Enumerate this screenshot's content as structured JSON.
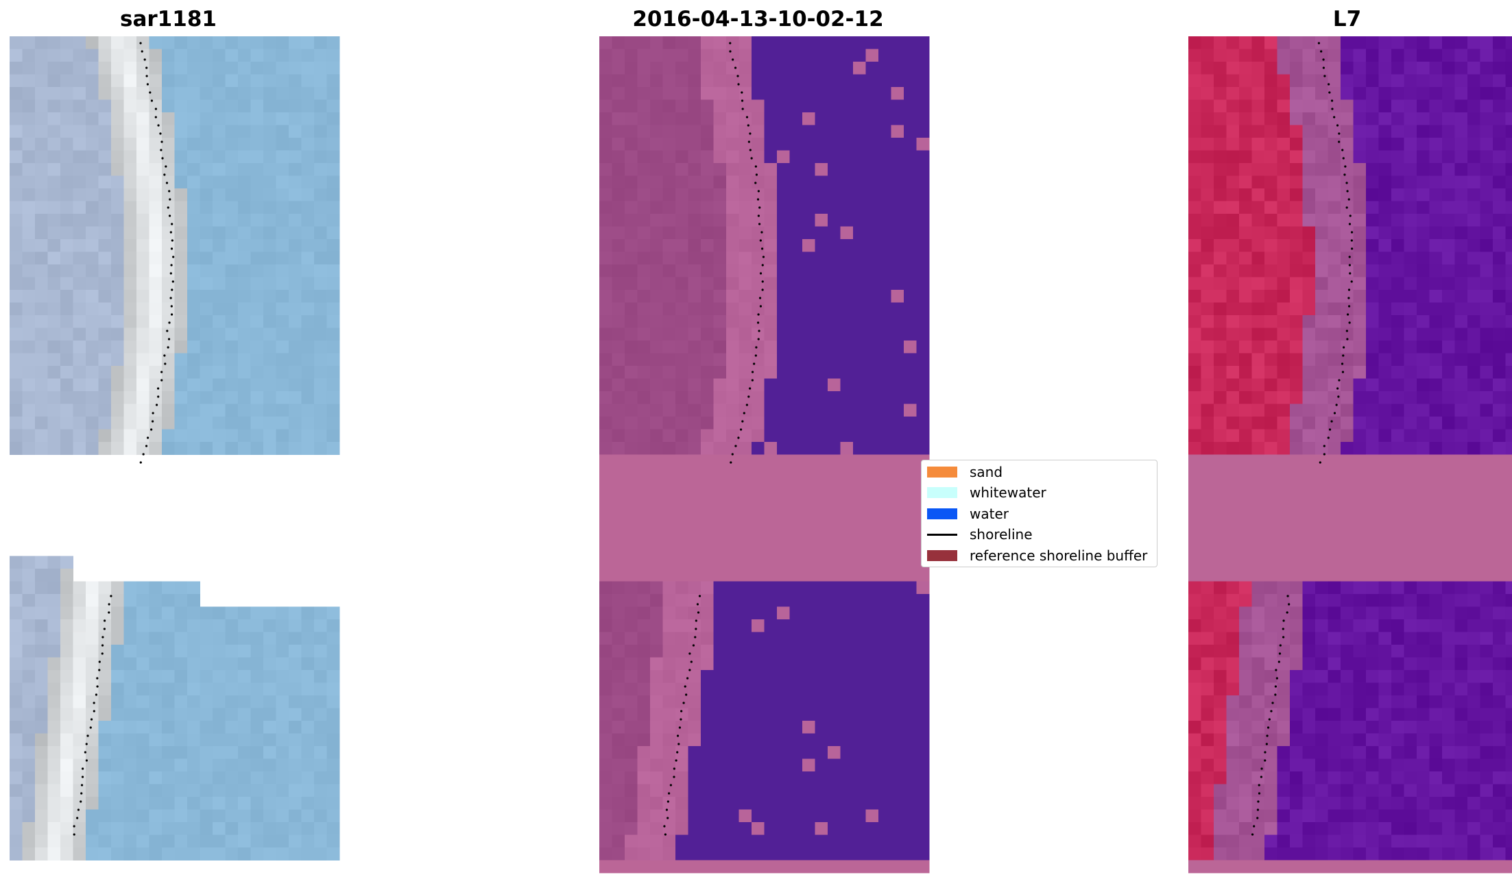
{
  "panels": [
    {
      "title": "sar1181",
      "kind": "rgb"
    },
    {
      "title": "2016-04-13-10-02-12",
      "kind": "classified"
    },
    {
      "title": "L7",
      "kind": "falsecolor"
    }
  ],
  "legend": {
    "items": [
      {
        "label": "sand",
        "color": "#f58b3b",
        "type": "patch"
      },
      {
        "label": "whitewater",
        "color": "#c8fffc",
        "type": "patch"
      },
      {
        "label": "water",
        "color": "#0a57f5",
        "type": "patch"
      },
      {
        "label": "shoreline",
        "color": "#000000",
        "type": "line"
      },
      {
        "label": "reference shoreline buffer",
        "color": "#97313c",
        "type": "patch"
      }
    ]
  },
  "colors": {
    "rgb_land": "#a9b8d2",
    "rgb_beach": "#f2f5f7",
    "rgb_water": "#8ab8d8",
    "class_land": "#9b4a85",
    "class_beach": "#b8649a",
    "class_water": "#522096",
    "class_buffer": "#bb6697",
    "fc_land": "#c9285a",
    "fc_beach": "#a45495",
    "fc_water": "#6414a0",
    "fc_buffer": "#bb6697"
  }
}
